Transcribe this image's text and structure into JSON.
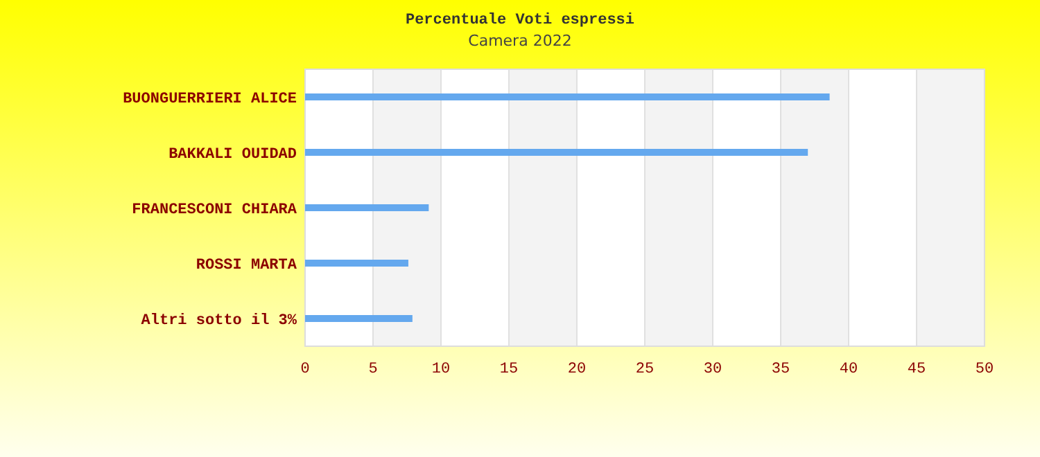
{
  "chart_data": {
    "type": "bar",
    "title": "Percentuale Voti espressi",
    "subtitle": "Camera 2022",
    "orientation": "horizontal",
    "categories": [
      "BUONGUERRIERI ALICE",
      "BAKKALI OUIDAD",
      "FRANCESCONI CHIARA",
      "ROSSI MARTA",
      "Altri sotto il 3%"
    ],
    "values": [
      38.6,
      37.0,
      9.1,
      7.6,
      7.9
    ],
    "color": "#64a8ee",
    "xlim": [
      0,
      50
    ],
    "xticks": [
      0,
      5,
      10,
      15,
      20,
      25,
      30,
      35,
      40,
      45,
      50
    ],
    "grid": "x"
  }
}
